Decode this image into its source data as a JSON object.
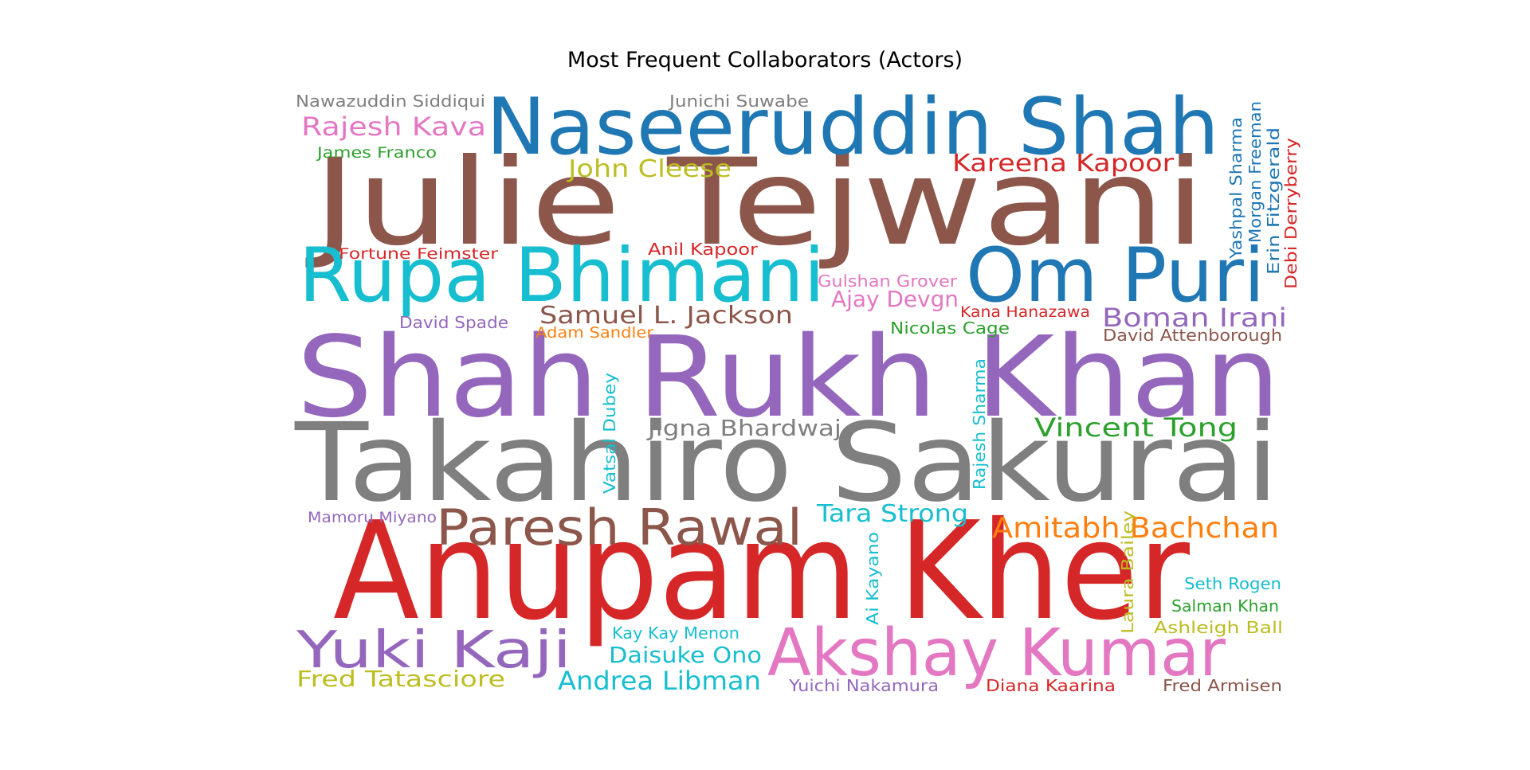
{
  "chart_data": {
    "type": "wordcloud",
    "title": "Most Frequent Collaborators (Actors)",
    "words": [
      {
        "text": "Julie Tejwani",
        "color": "#8c564b",
        "orientation": "horizontal"
      },
      {
        "text": "Naseeruddin Shah",
        "color": "#1f77b4",
        "orientation": "horizontal"
      },
      {
        "text": "Rupa Bhimani",
        "color": "#17becf",
        "orientation": "horizontal"
      },
      {
        "text": "Om Puri",
        "color": "#1f77b4",
        "orientation": "horizontal"
      },
      {
        "text": "Shah Rukh Khan",
        "color": "#9467bd",
        "orientation": "horizontal"
      },
      {
        "text": "Takahiro Sakurai",
        "color": "#7f7f7f",
        "orientation": "horizontal"
      },
      {
        "text": "Anupam Kher",
        "color": "#d62728",
        "orientation": "horizontal"
      },
      {
        "text": "Akshay Kumar",
        "color": "#e377c2",
        "orientation": "horizontal"
      },
      {
        "text": "Paresh Rawal",
        "color": "#8c564b",
        "orientation": "horizontal"
      },
      {
        "text": "Yuki Kaji",
        "color": "#9467bd",
        "orientation": "horizontal"
      },
      {
        "text": "Rajesh Kava",
        "color": "#e377c2",
        "orientation": "horizontal"
      },
      {
        "text": "Nawazuddin Siddiqui",
        "color": "#7f7f7f",
        "orientation": "horizontal"
      },
      {
        "text": "Junichi Suwabe",
        "color": "#7f7f7f",
        "orientation": "horizontal"
      },
      {
        "text": "James Franco",
        "color": "#2ca02c",
        "orientation": "horizontal"
      },
      {
        "text": "John Cleese",
        "color": "#bcbd22",
        "orientation": "horizontal"
      },
      {
        "text": "Kareena Kapoor",
        "color": "#d62728",
        "orientation": "horizontal"
      },
      {
        "text": "Fortune Feimster",
        "color": "#d62728",
        "orientation": "horizontal"
      },
      {
        "text": "Anil Kapoor",
        "color": "#d62728",
        "orientation": "horizontal"
      },
      {
        "text": "Gulshan Grover",
        "color": "#e377c2",
        "orientation": "horizontal"
      },
      {
        "text": "Ajay Devgn",
        "color": "#e377c2",
        "orientation": "horizontal"
      },
      {
        "text": "Kana Hanazawa",
        "color": "#d62728",
        "orientation": "horizontal"
      },
      {
        "text": "Boman Irani",
        "color": "#9467bd",
        "orientation": "horizontal"
      },
      {
        "text": "David Attenborough",
        "color": "#8c564b",
        "orientation": "horizontal"
      },
      {
        "text": "Nicolas Cage",
        "color": "#2ca02c",
        "orientation": "horizontal"
      },
      {
        "text": "Samuel L. Jackson",
        "color": "#8c564b",
        "orientation": "horizontal"
      },
      {
        "text": "David Spade",
        "color": "#9467bd",
        "orientation": "horizontal"
      },
      {
        "text": "Adam Sandler",
        "color": "#ff7f0e",
        "orientation": "horizontal"
      },
      {
        "text": "Jigna Bhardwaj",
        "color": "#7f7f7f",
        "orientation": "horizontal"
      },
      {
        "text": "Vincent Tong",
        "color": "#2ca02c",
        "orientation": "horizontal"
      },
      {
        "text": "Vatsal Dubey",
        "color": "#17becf",
        "orientation": "vertical"
      },
      {
        "text": "Rajesh Sharma",
        "color": "#17becf",
        "orientation": "vertical"
      },
      {
        "text": "Yashpal Sharma",
        "color": "#1f77b4",
        "orientation": "vertical"
      },
      {
        "text": "Morgan Freeman",
        "color": "#1f77b4",
        "orientation": "vertical"
      },
      {
        "text": "Erin Fitzgerald",
        "color": "#1f77b4",
        "orientation": "vertical"
      },
      {
        "text": "Debi Derryberry",
        "color": "#d62728",
        "orientation": "vertical"
      },
      {
        "text": "Mamoru Miyano",
        "color": "#9467bd",
        "orientation": "horizontal"
      },
      {
        "text": "Tara Strong",
        "color": "#17becf",
        "orientation": "horizontal"
      },
      {
        "text": "Amitabh Bachchan",
        "color": "#ff7f0e",
        "orientation": "horizontal"
      },
      {
        "text": "Ai Kayano",
        "color": "#17becf",
        "orientation": "vertical"
      },
      {
        "text": "Laura Bailey",
        "color": "#bcbd22",
        "orientation": "vertical"
      },
      {
        "text": "Seth Rogen",
        "color": "#17becf",
        "orientation": "horizontal"
      },
      {
        "text": "Salman Khan",
        "color": "#2ca02c",
        "orientation": "horizontal"
      },
      {
        "text": "Ashleigh Ball",
        "color": "#bcbd22",
        "orientation": "horizontal"
      },
      {
        "text": "Kay Kay Menon",
        "color": "#17becf",
        "orientation": "horizontal"
      },
      {
        "text": "Daisuke Ono",
        "color": "#17becf",
        "orientation": "horizontal"
      },
      {
        "text": "Fred Tatasciore",
        "color": "#bcbd22",
        "orientation": "horizontal"
      },
      {
        "text": "Andrea Libman",
        "color": "#17becf",
        "orientation": "horizontal"
      },
      {
        "text": "Yuichi Nakamura",
        "color": "#9467bd",
        "orientation": "horizontal"
      },
      {
        "text": "Diana Kaarina",
        "color": "#d62728",
        "orientation": "horizontal"
      },
      {
        "text": "Fred Armisen",
        "color": "#8c564b",
        "orientation": "horizontal"
      }
    ]
  }
}
